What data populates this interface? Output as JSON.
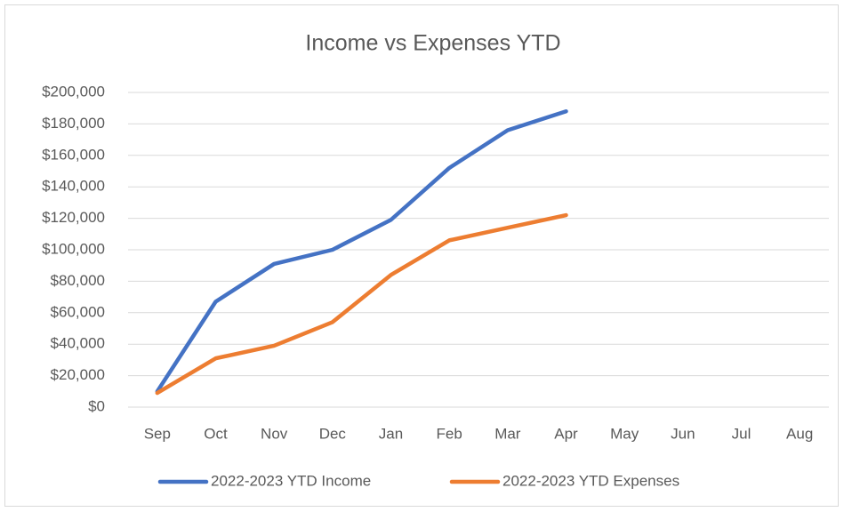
{
  "chart_data": {
    "type": "line",
    "title": "Income vs Expenses YTD",
    "categories": [
      "Sep",
      "Oct",
      "Nov",
      "Dec",
      "Jan",
      "Feb",
      "Mar",
      "Apr",
      "May",
      "Jun",
      "Jul",
      "Aug"
    ],
    "series": [
      {
        "name": "2022-2023 YTD Income",
        "color": "#4472c4",
        "values": [
          10000,
          67000,
          91000,
          100000,
          119000,
          152000,
          176000,
          188000,
          null,
          null,
          null,
          null
        ]
      },
      {
        "name": "2022-2023 YTD Expenses",
        "color": "#ed7d31",
        "values": [
          9000,
          31000,
          39000,
          54000,
          84000,
          106000,
          114000,
          122000,
          null,
          null,
          null,
          null
        ]
      }
    ],
    "ylim": [
      0,
      200000
    ],
    "yticks": [
      {
        "value": 0,
        "label": "$0"
      },
      {
        "value": 20000,
        "label": "$20,000"
      },
      {
        "value": 40000,
        "label": "$40,000"
      },
      {
        "value": 60000,
        "label": "$60,000"
      },
      {
        "value": 80000,
        "label": "$80,000"
      },
      {
        "value": 100000,
        "label": "$100,000"
      },
      {
        "value": 120000,
        "label": "$120,000"
      },
      {
        "value": 140000,
        "label": "$140,000"
      },
      {
        "value": 160000,
        "label": "$160,000"
      },
      {
        "value": 180000,
        "label": "$180,000"
      },
      {
        "value": 200000,
        "label": "$200,000"
      }
    ],
    "grid": true,
    "legend": "bottom"
  }
}
